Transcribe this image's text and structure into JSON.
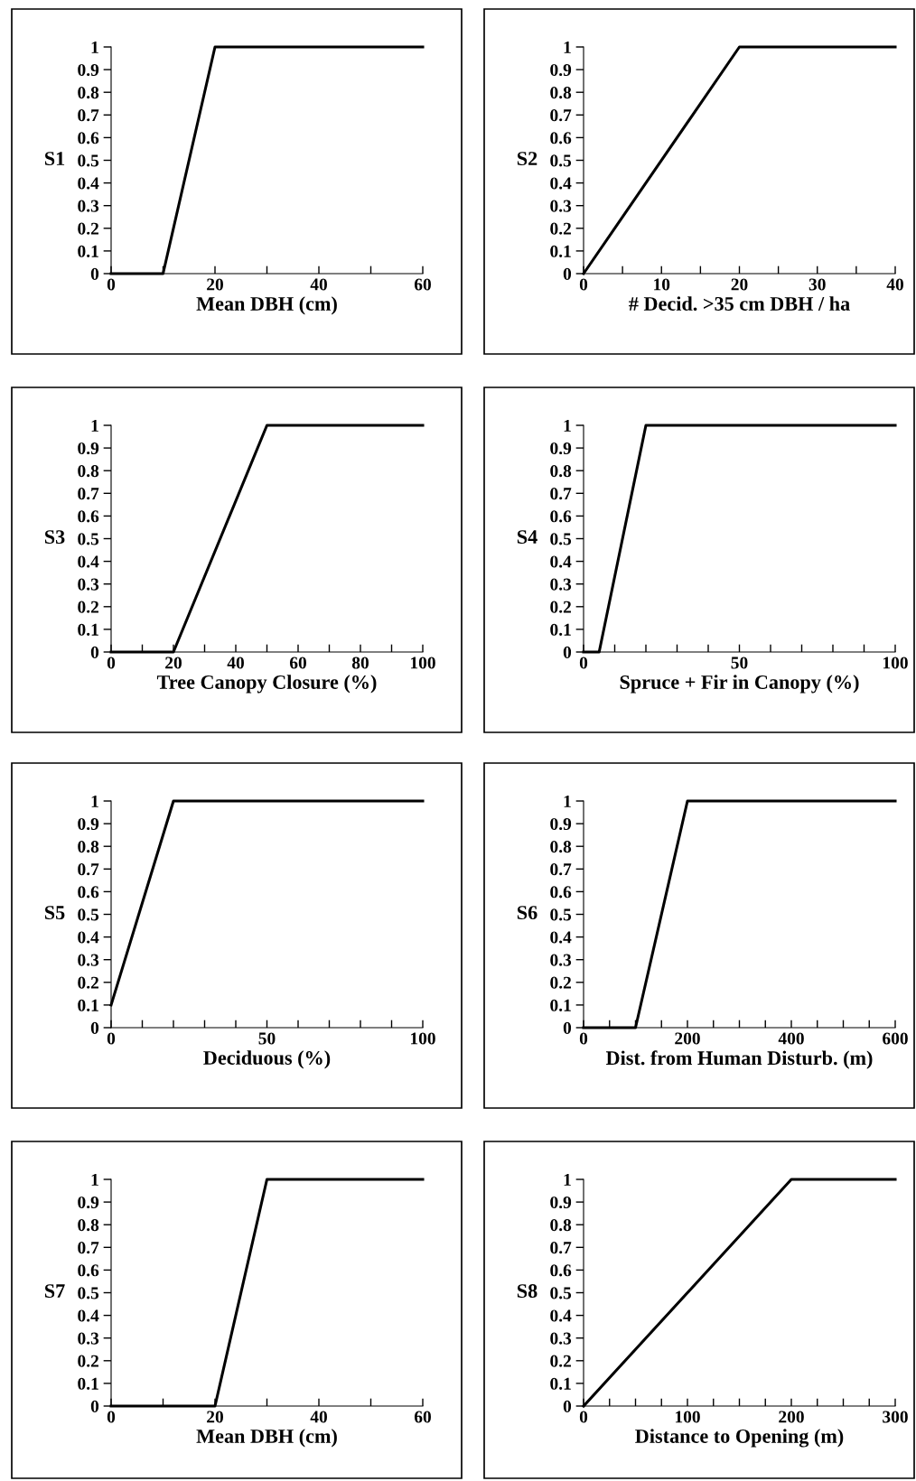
{
  "chart_data": [
    {
      "type": "line",
      "ylabel": "S1",
      "xlabel": "Mean DBH (cm)",
      "x": [
        0,
        10,
        20,
        60
      ],
      "series": [
        {
          "color": "#000000",
          "values": [
            0,
            0,
            1,
            1
          ]
        }
      ],
      "xlim": [
        0,
        60
      ],
      "xticks": [
        0,
        {
          "value": 10,
          "label": null
        },
        20,
        {
          "value": 30,
          "label": null
        },
        40,
        {
          "value": 50,
          "label": null
        },
        60
      ],
      "ylim": [
        0,
        1
      ],
      "yticks": [
        0,
        0.1,
        0.2,
        0.3,
        0.4,
        0.5,
        0.6,
        0.7,
        0.8,
        0.9,
        1
      ],
      "grid": false,
      "marker": "none",
      "line_style": "solid"
    },
    {
      "type": "line",
      "ylabel": "S2",
      "xlabel": "# Decid. >35 cm DBH / ha",
      "x": [
        0,
        20,
        40
      ],
      "series": [
        {
          "color": "#000000",
          "values": [
            0,
            1,
            1
          ]
        }
      ],
      "xlim": [
        0,
        40
      ],
      "xticks": [
        0,
        {
          "value": 5,
          "label": null
        },
        10,
        {
          "value": 15,
          "label": null
        },
        20,
        {
          "value": 25,
          "label": null
        },
        30,
        {
          "value": 35,
          "label": null
        },
        40
      ],
      "ylim": [
        0,
        1
      ],
      "yticks": [
        0,
        0.1,
        0.2,
        0.3,
        0.4,
        0.5,
        0.6,
        0.7,
        0.8,
        0.9,
        1
      ],
      "grid": false,
      "marker": "none",
      "line_style": "solid"
    },
    {
      "type": "line",
      "ylabel": "S3",
      "xlabel": "Tree Canopy Closure (%)",
      "x": [
        0,
        20,
        50,
        100
      ],
      "series": [
        {
          "color": "#000000",
          "values": [
            0,
            0,
            1,
            1
          ]
        }
      ],
      "xlim": [
        0,
        100
      ],
      "xticks": [
        0,
        {
          "value": 10,
          "label": null
        },
        20,
        {
          "value": 30,
          "label": null
        },
        40,
        {
          "value": 50,
          "label": null
        },
        60,
        {
          "value": 70,
          "label": null
        },
        80,
        {
          "value": 90,
          "label": null
        },
        100
      ],
      "ylim": [
        0,
        1
      ],
      "yticks": [
        0,
        0.1,
        0.2,
        0.3,
        0.4,
        0.5,
        0.6,
        0.7,
        0.8,
        0.9,
        1
      ],
      "grid": false,
      "marker": "none",
      "line_style": "solid"
    },
    {
      "type": "line",
      "ylabel": "S4",
      "xlabel": "Spruce + Fir in Canopy (%)",
      "x": [
        0,
        5,
        20,
        100
      ],
      "series": [
        {
          "color": "#000000",
          "values": [
            0,
            0,
            1,
            1
          ]
        }
      ],
      "xlim": [
        0,
        100
      ],
      "xticks": [
        0,
        {
          "value": 10,
          "label": null
        },
        {
          "value": 20,
          "label": null
        },
        {
          "value": 30,
          "label": null
        },
        {
          "value": 40,
          "label": null
        },
        50,
        {
          "value": 60,
          "label": null
        },
        {
          "value": 70,
          "label": null
        },
        {
          "value": 80,
          "label": null
        },
        {
          "value": 90,
          "label": null
        },
        100
      ],
      "ylim": [
        0,
        1
      ],
      "yticks": [
        0,
        0.1,
        0.2,
        0.3,
        0.4,
        0.5,
        0.6,
        0.7,
        0.8,
        0.9,
        1
      ],
      "grid": false,
      "marker": "none",
      "line_style": "solid"
    },
    {
      "type": "line",
      "ylabel": "S5",
      "xlabel": "Deciduous (%)",
      "x": [
        0,
        20,
        100
      ],
      "series": [
        {
          "color": "#000000",
          "values": [
            0.1,
            1,
            1
          ]
        }
      ],
      "xlim": [
        0,
        100
      ],
      "xticks": [
        0,
        {
          "value": 10,
          "label": null
        },
        {
          "value": 20,
          "label": null
        },
        {
          "value": 30,
          "label": null
        },
        {
          "value": 40,
          "label": null
        },
        50,
        {
          "value": 60,
          "label": null
        },
        {
          "value": 70,
          "label": null
        },
        {
          "value": 80,
          "label": null
        },
        {
          "value": 90,
          "label": null
        },
        100
      ],
      "ylim": [
        0,
        1
      ],
      "yticks": [
        0,
        0.1,
        0.2,
        0.3,
        0.4,
        0.5,
        0.6,
        0.7,
        0.8,
        0.9,
        1
      ],
      "grid": false,
      "marker": "none",
      "line_style": "solid"
    },
    {
      "type": "line",
      "ylabel": "S6",
      "xlabel": "Dist. from Human Disturb. (m)",
      "x": [
        0,
        100,
        200,
        600
      ],
      "series": [
        {
          "color": "#000000",
          "values": [
            0,
            0,
            1,
            1
          ]
        }
      ],
      "xlim": [
        0,
        600
      ],
      "xticks": [
        0,
        {
          "value": 50,
          "label": null
        },
        {
          "value": 100,
          "label": null
        },
        {
          "value": 150,
          "label": null
        },
        200,
        {
          "value": 250,
          "label": null
        },
        {
          "value": 300,
          "label": null
        },
        {
          "value": 350,
          "label": null
        },
        400,
        {
          "value": 450,
          "label": null
        },
        {
          "value": 500,
          "label": null
        },
        {
          "value": 550,
          "label": null
        },
        600
      ],
      "ylim": [
        0,
        1
      ],
      "yticks": [
        0,
        0.1,
        0.2,
        0.3,
        0.4,
        0.5,
        0.6,
        0.7,
        0.8,
        0.9,
        1
      ],
      "grid": false,
      "marker": "none",
      "line_style": "solid"
    },
    {
      "type": "line",
      "ylabel": "S7",
      "xlabel": "Mean DBH (cm)",
      "x": [
        0,
        20,
        30,
        60
      ],
      "series": [
        {
          "color": "#000000",
          "values": [
            0,
            0,
            1,
            1
          ]
        }
      ],
      "xlim": [
        0,
        60
      ],
      "xticks": [
        0,
        {
          "value": 10,
          "label": null
        },
        20,
        {
          "value": 30,
          "label": null
        },
        40,
        {
          "value": 50,
          "label": null
        },
        60
      ],
      "ylim": [
        0,
        1
      ],
      "yticks": [
        0,
        0.1,
        0.2,
        0.3,
        0.4,
        0.5,
        0.6,
        0.7,
        0.8,
        0.9,
        1
      ],
      "grid": false,
      "marker": "none",
      "line_style": "solid"
    },
    {
      "type": "line",
      "ylabel": "S8",
      "xlabel": "Distance to Opening (m)",
      "x": [
        0,
        200,
        300
      ],
      "series": [
        {
          "color": "#000000",
          "values": [
            0,
            1,
            1
          ]
        }
      ],
      "xlim": [
        0,
        300
      ],
      "xticks": [
        0,
        {
          "value": 25,
          "label": null
        },
        {
          "value": 50,
          "label": null
        },
        {
          "value": 75,
          "label": null
        },
        100,
        {
          "value": 125,
          "label": null
        },
        {
          "value": 150,
          "label": null
        },
        {
          "value": 175,
          "label": null
        },
        200,
        {
          "value": 225,
          "label": null
        },
        {
          "value": 250,
          "label": null
        },
        {
          "value": 275,
          "label": null
        },
        300
      ],
      "ylim": [
        0,
        1
      ],
      "yticks": [
        0,
        0.1,
        0.2,
        0.3,
        0.4,
        0.5,
        0.6,
        0.7,
        0.8,
        0.9,
        1
      ],
      "grid": false,
      "marker": "none",
      "line_style": "solid"
    }
  ]
}
